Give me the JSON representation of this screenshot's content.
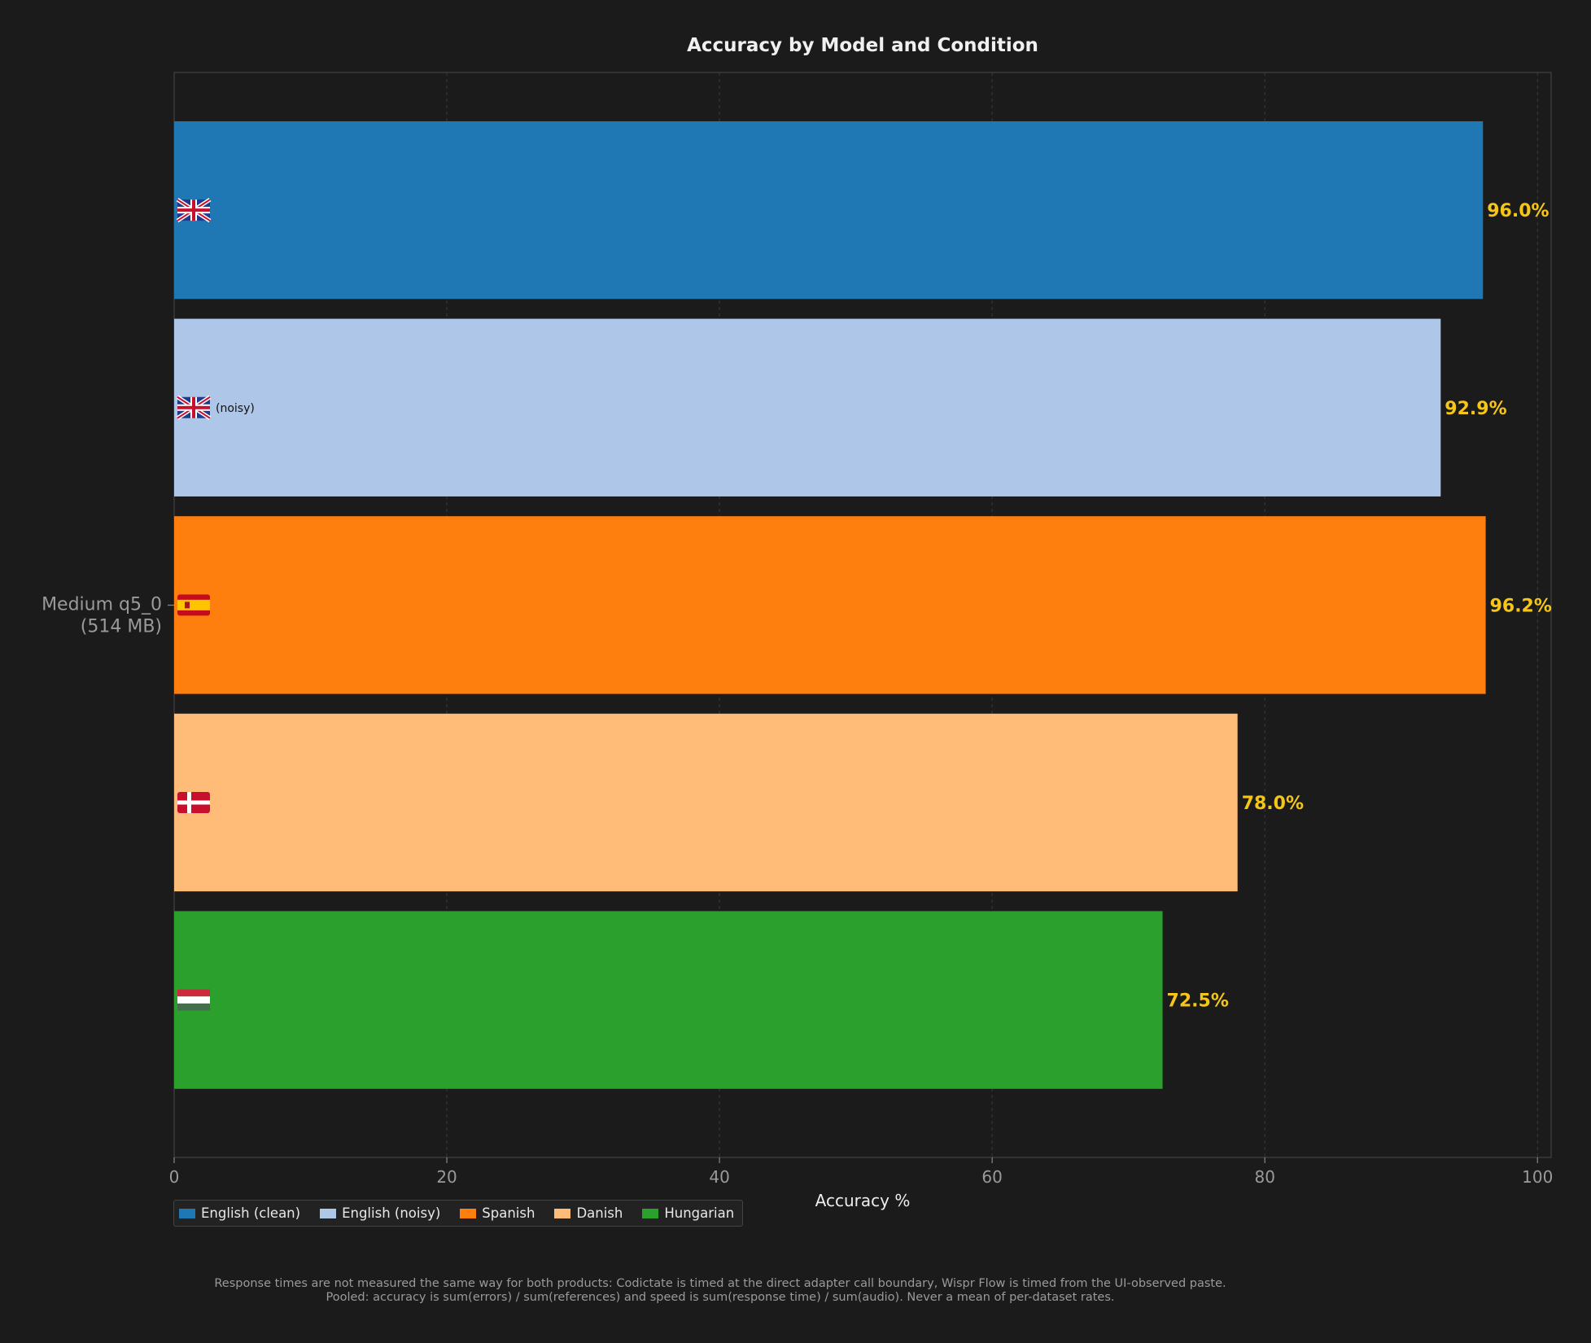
{
  "chart_data": {
    "type": "bar",
    "orientation": "horizontal",
    "title": "Accuracy by Model and Condition",
    "xlabel": "Accuracy %",
    "ylabel": "",
    "xlim": [
      0,
      101
    ],
    "xticks": [
      0,
      20,
      40,
      60,
      80,
      100
    ],
    "grid": true,
    "categories": [
      "Medium q5_0\n(514 MB)"
    ],
    "series": [
      {
        "name": "English (clean)",
        "values": [
          96.0
        ],
        "label": "96.0%",
        "color": "#1f77b4",
        "flag": "uk",
        "suffix": ""
      },
      {
        "name": "English (noisy)",
        "values": [
          92.9
        ],
        "label": "92.9%",
        "color": "#aec7e8",
        "flag": "uk",
        "suffix": "(noisy)"
      },
      {
        "name": "Spanish",
        "values": [
          96.2
        ],
        "label": "96.2%",
        "color": "#ff7f0e",
        "flag": "es",
        "suffix": ""
      },
      {
        "name": "Danish",
        "values": [
          78.0
        ],
        "label": "78.0%",
        "color": "#ffbb78",
        "flag": "dk",
        "suffix": ""
      },
      {
        "name": "Hungarian",
        "values": [
          72.5
        ],
        "label": "72.5%",
        "color": "#2ca02c",
        "flag": "hu",
        "suffix": ""
      }
    ],
    "value_label_color": "#f5c518",
    "legend_placement": "bottom-left"
  },
  "footnote": {
    "line1": "Response times are not measured the same way for both products: Codictate is timed at the direct adapter call boundary, Wispr Flow is timed from the UI-observed paste.",
    "line2": "Pooled: accuracy is sum(errors) / sum(references) and speed is sum(response time) / sum(audio). Never a mean of per-dataset rates."
  }
}
